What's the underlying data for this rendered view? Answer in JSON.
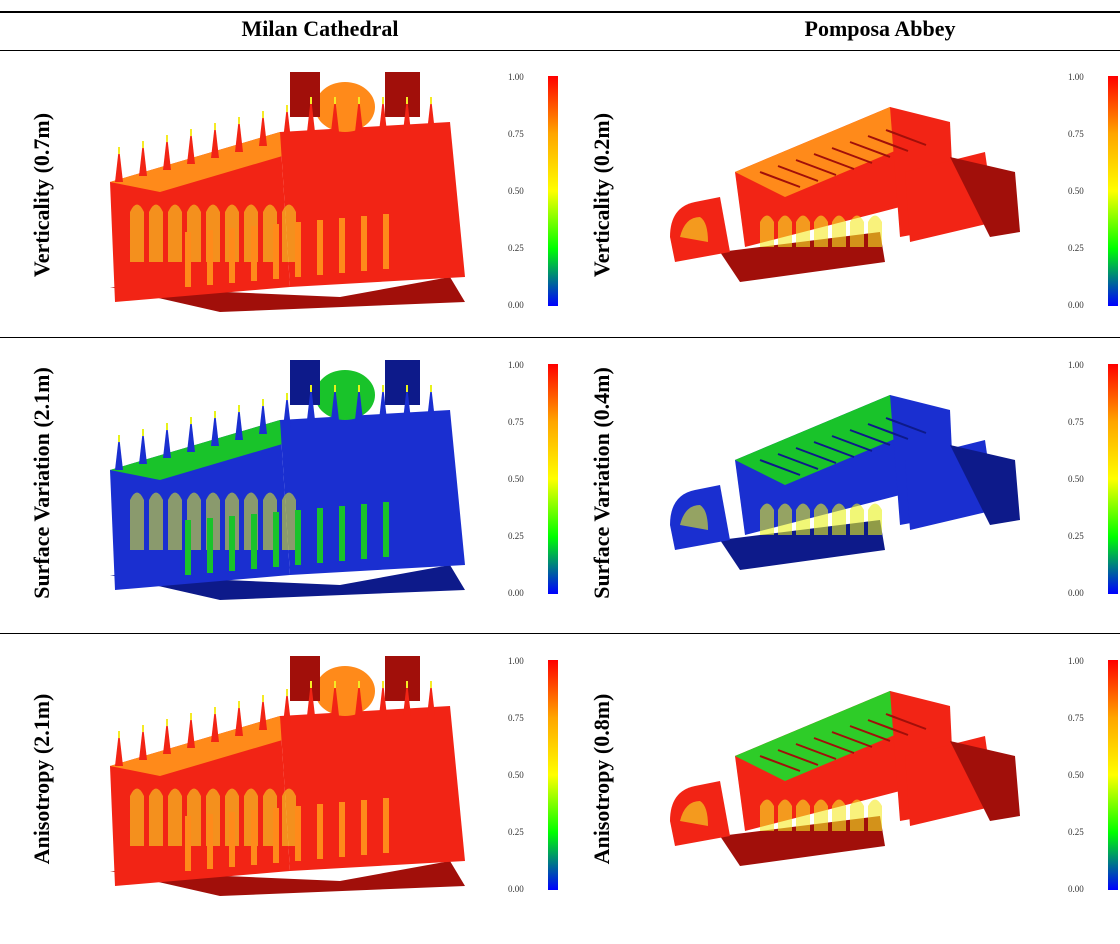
{
  "columns": [
    {
      "label": "Milan Cathedral"
    },
    {
      "label": "Pomposa Abbey"
    }
  ],
  "rows": [
    {
      "milan_label": "Verticality (0.7m)",
      "pomposa_label": "Verticality (0.2m)",
      "milan_scheme": "red",
      "pomposa_scheme": "red"
    },
    {
      "milan_label": "Surface Variation (2.1m)",
      "pomposa_label": "Surface Variation (0.4m)",
      "milan_scheme": "blue",
      "pomposa_scheme": "blue"
    },
    {
      "milan_label": "Anisotropy (2.1m)",
      "pomposa_label": "Anisotropy (0.8m)",
      "milan_scheme": "red",
      "pomposa_scheme": "red"
    }
  ],
  "colorbar": {
    "ticks": [
      "1.00",
      "0.75",
      "0.50",
      "0.25",
      "0.00"
    ],
    "colors": [
      "#ff0000",
      "#ffa500",
      "#ffff00",
      "#00ff00",
      "#0000ff"
    ]
  }
}
